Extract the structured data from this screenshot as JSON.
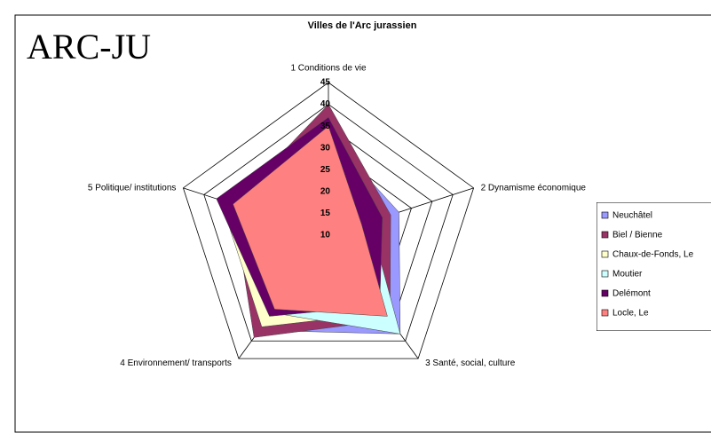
{
  "chart_data": {
    "type": "radar",
    "title": "Villes de l'Arc jurassien",
    "annotations": [
      "ARC-JU"
    ],
    "categories": [
      "1 Conditions de vie",
      "2 Dynamisme économique",
      "3 Santé, social, culture",
      "4 Environnement/ transports",
      "5 Politique/ institutions"
    ],
    "series": [
      {
        "name": "Neuchâtel",
        "color": "#9999ff",
        "values": [
          33,
          27,
          38,
          37,
          30
        ]
      },
      {
        "name": "Biel / Bienne",
        "color": "#993366",
        "values": [
          40,
          25,
          34,
          39,
          33
        ]
      },
      {
        "name": "Chaux-de-Fonds, Le",
        "color": "#ffffcc",
        "values": [
          36,
          22,
          32,
          36,
          36
        ]
      },
      {
        "name": "Moutier",
        "color": "#ccffff",
        "values": [
          34,
          20,
          38,
          32,
          34
        ]
      },
      {
        "name": "Delémont",
        "color": "#660066",
        "values": [
          37,
          23,
          30,
          33,
          37
        ]
      },
      {
        "name": "Locle, Le",
        "color": "#ff8080",
        "values": [
          35,
          18,
          33,
          31,
          33
        ]
      }
    ],
    "ylim": [
      10,
      45
    ],
    "yticks": [
      10,
      15,
      20,
      25,
      30,
      35,
      40,
      45
    ],
    "grid": true,
    "legend": "right"
  }
}
